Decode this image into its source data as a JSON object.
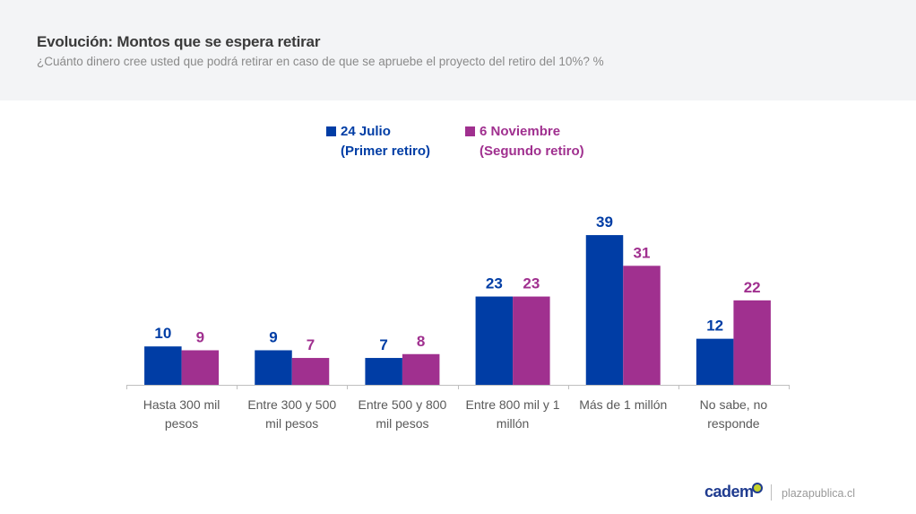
{
  "header": {
    "title": "Evolución: Montos que se espera retirar",
    "subtitle": "¿Cuánto dinero cree usted que podrá retirar en caso de que se apruebe el proyecto del retiro del 10%? %"
  },
  "footer": {
    "logo": "cadem",
    "site": "plazapublica.cl"
  },
  "chart_data": {
    "type": "bar",
    "title": "Evolución: Montos que se espera retirar",
    "xlabel": "",
    "ylabel": "%",
    "ylim": [
      0,
      39
    ],
    "grid": false,
    "legend_position": "top-center",
    "categories": [
      [
        "Hasta 300 mil",
        "pesos"
      ],
      [
        "Entre 300 y 500",
        "mil pesos"
      ],
      [
        "Entre 500 y 800",
        "mil pesos"
      ],
      [
        "Entre 800 mil y 1",
        "millón"
      ],
      [
        "Más de 1 millón"
      ],
      [
        "No sabe, no",
        "responde"
      ]
    ],
    "series": [
      {
        "name": "24 Julio (Primer retiro)",
        "label_lines": [
          "24 Julio",
          "(Primer retiro)"
        ],
        "color": "#003da5",
        "values": [
          10,
          9,
          7,
          23,
          39,
          12
        ]
      },
      {
        "name": "6 Noviembre (Segundo retiro)",
        "label_lines": [
          "6 Noviembre",
          "(Segundo retiro)"
        ],
        "color": "#a0308f",
        "values": [
          9,
          7,
          8,
          23,
          31,
          22
        ]
      }
    ]
  }
}
